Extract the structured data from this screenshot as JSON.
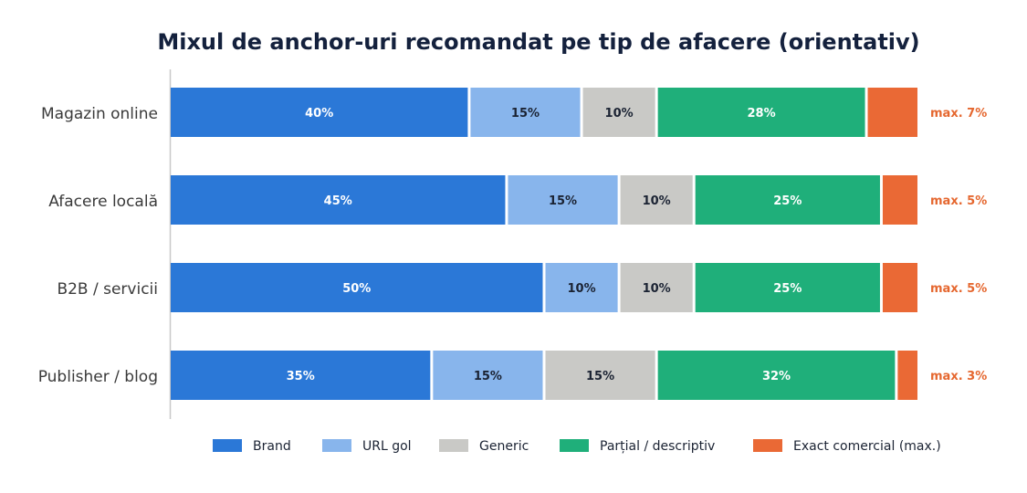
{
  "chart_data": {
    "type": "bar",
    "orientation": "horizontal",
    "stacked": true,
    "title": "Mixul de anchor-uri recomandat pe tip de afacere (orientativ)",
    "xlabel": "",
    "ylabel": "",
    "xlim": [
      0,
      100
    ],
    "grid": false,
    "legend_position": "bottom",
    "categories": [
      "Magazin online",
      "Afacere locală",
      "B2B / servicii",
      "Publisher / blog"
    ],
    "series": [
      {
        "name": "Brand",
        "color": "#2B78D7",
        "label_color": "#ffffff",
        "values": [
          40,
          45,
          50,
          35
        ],
        "labels": [
          "40%",
          "45%",
          "50%",
          "35%"
        ]
      },
      {
        "name": "URL gol",
        "color": "#88B5EC",
        "label_color": "#1B2333",
        "values": [
          15,
          15,
          10,
          15
        ],
        "labels": [
          "15%",
          "15%",
          "10%",
          "15%"
        ]
      },
      {
        "name": "Generic",
        "color": "#C9C9C6",
        "label_color": "#1B2333",
        "values": [
          10,
          10,
          10,
          15
        ],
        "labels": [
          "10%",
          "10%",
          "10%",
          "15%"
        ]
      },
      {
        "name": "Parțial / descriptiv",
        "color": "#1FAF7A",
        "label_color": "#ffffff",
        "values": [
          28,
          25,
          25,
          32
        ],
        "labels": [
          "28%",
          "25%",
          "25%",
          "32%"
        ]
      },
      {
        "name": "Exact comercial (max.)",
        "color": "#EA6935",
        "label_color": "#ffffff",
        "values": [
          7,
          5,
          5,
          3
        ],
        "labels": [
          "",
          "",
          "",
          ""
        ]
      }
    ],
    "annotations": [
      "max. 7%",
      "max. 5%",
      "max. 5%",
      "max. 3%"
    ],
    "annotation_color": "#E5672F",
    "title_color": "#14213D",
    "axis_color": "#C8C8C8",
    "category_label_color": "#3A3A3A"
  }
}
